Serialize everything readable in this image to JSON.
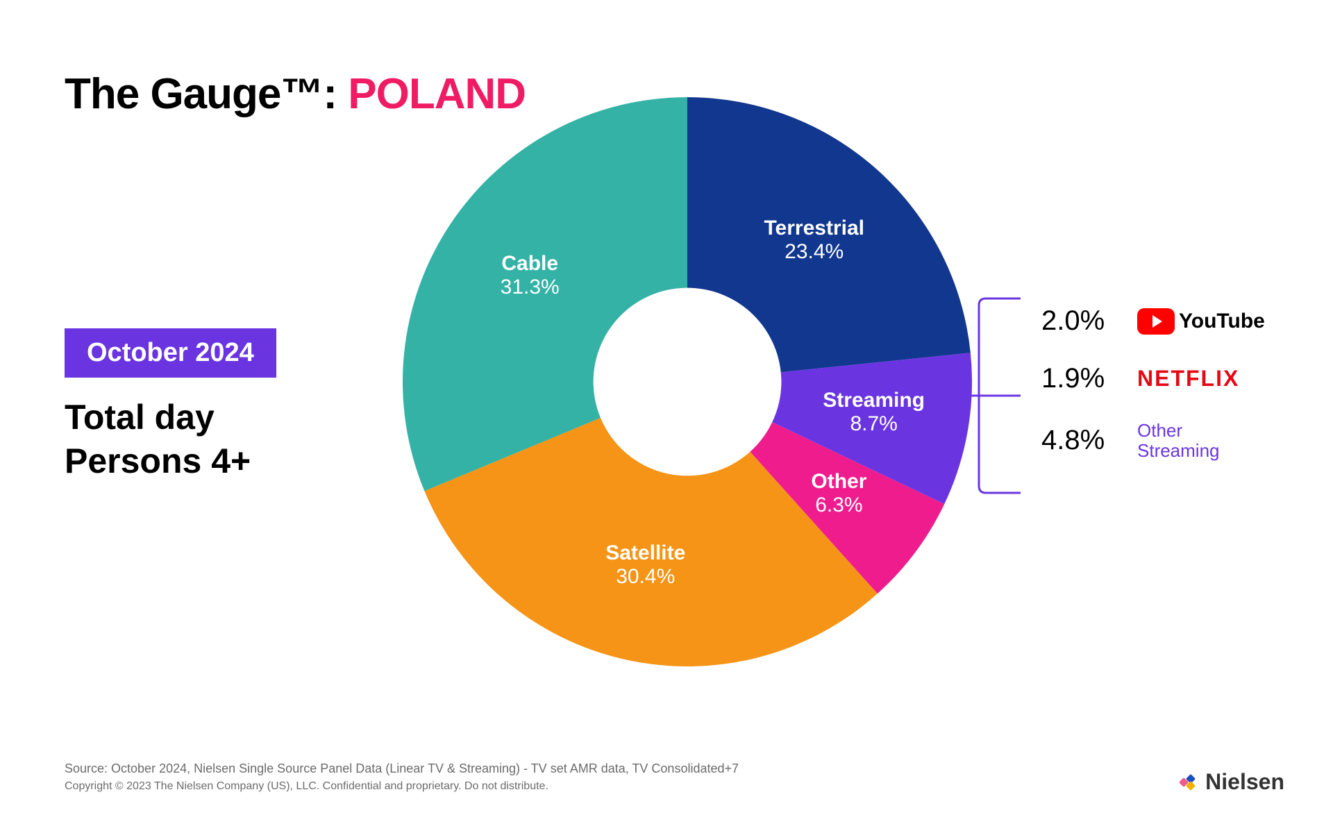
{
  "title_prefix": "The Gauge™: ",
  "title_country": "POLAND",
  "date_badge": "October 2024",
  "subtitle_line1": "Total day",
  "subtitle_line2": "Persons 4+",
  "chart": {
    "type": "donut",
    "inner_radius_pct": 0.33,
    "outer_radius_pct": 1.0,
    "background_color": "#ffffff",
    "label_color": "#ffffff",
    "label_fontsize": 30,
    "start_angle_deg": -90,
    "slices": [
      {
        "key": "terrestrial",
        "label": "Terrestrial",
        "value": 23.4,
        "display": "23.4%",
        "color": "#12378e"
      },
      {
        "key": "streaming",
        "label": "Streaming",
        "value": 8.7,
        "display": "8.7%",
        "color": "#6a35e0"
      },
      {
        "key": "other",
        "label": "Other",
        "value": 6.3,
        "display": "6.3%",
        "color": "#ef1c8e"
      },
      {
        "key": "satellite",
        "label": "Satellite",
        "value": 30.4,
        "display": "30.4%",
        "color": "#f59416"
      },
      {
        "key": "cable",
        "label": "Cable",
        "value": 31.3,
        "display": "31.3%",
        "color": "#34b2a6"
      }
    ]
  },
  "breakdown": {
    "bracket_color": "#6a35e0",
    "items": [
      {
        "pct": "2.0%",
        "brand": "youtube",
        "label": "YouTube",
        "brand_color": "#ff0000"
      },
      {
        "pct": "1.9%",
        "brand": "netflix",
        "label": "NETFLIX",
        "brand_color": "#e50914"
      },
      {
        "pct": "4.8%",
        "brand": "other",
        "label_line1": "Other",
        "label_line2": "Streaming",
        "brand_color": "#6a35e0"
      }
    ]
  },
  "footer": {
    "source": "Source: October 2024, Nielsen Single Source Panel Data (Linear TV & Streaming) - TV set AMR data, TV Consolidated+7",
    "copyright": "Copyright © 2023 The Nielsen Company (US), LLC. Confidential and proprietary. Do not distribute."
  },
  "logo_text": "Nielsen"
}
